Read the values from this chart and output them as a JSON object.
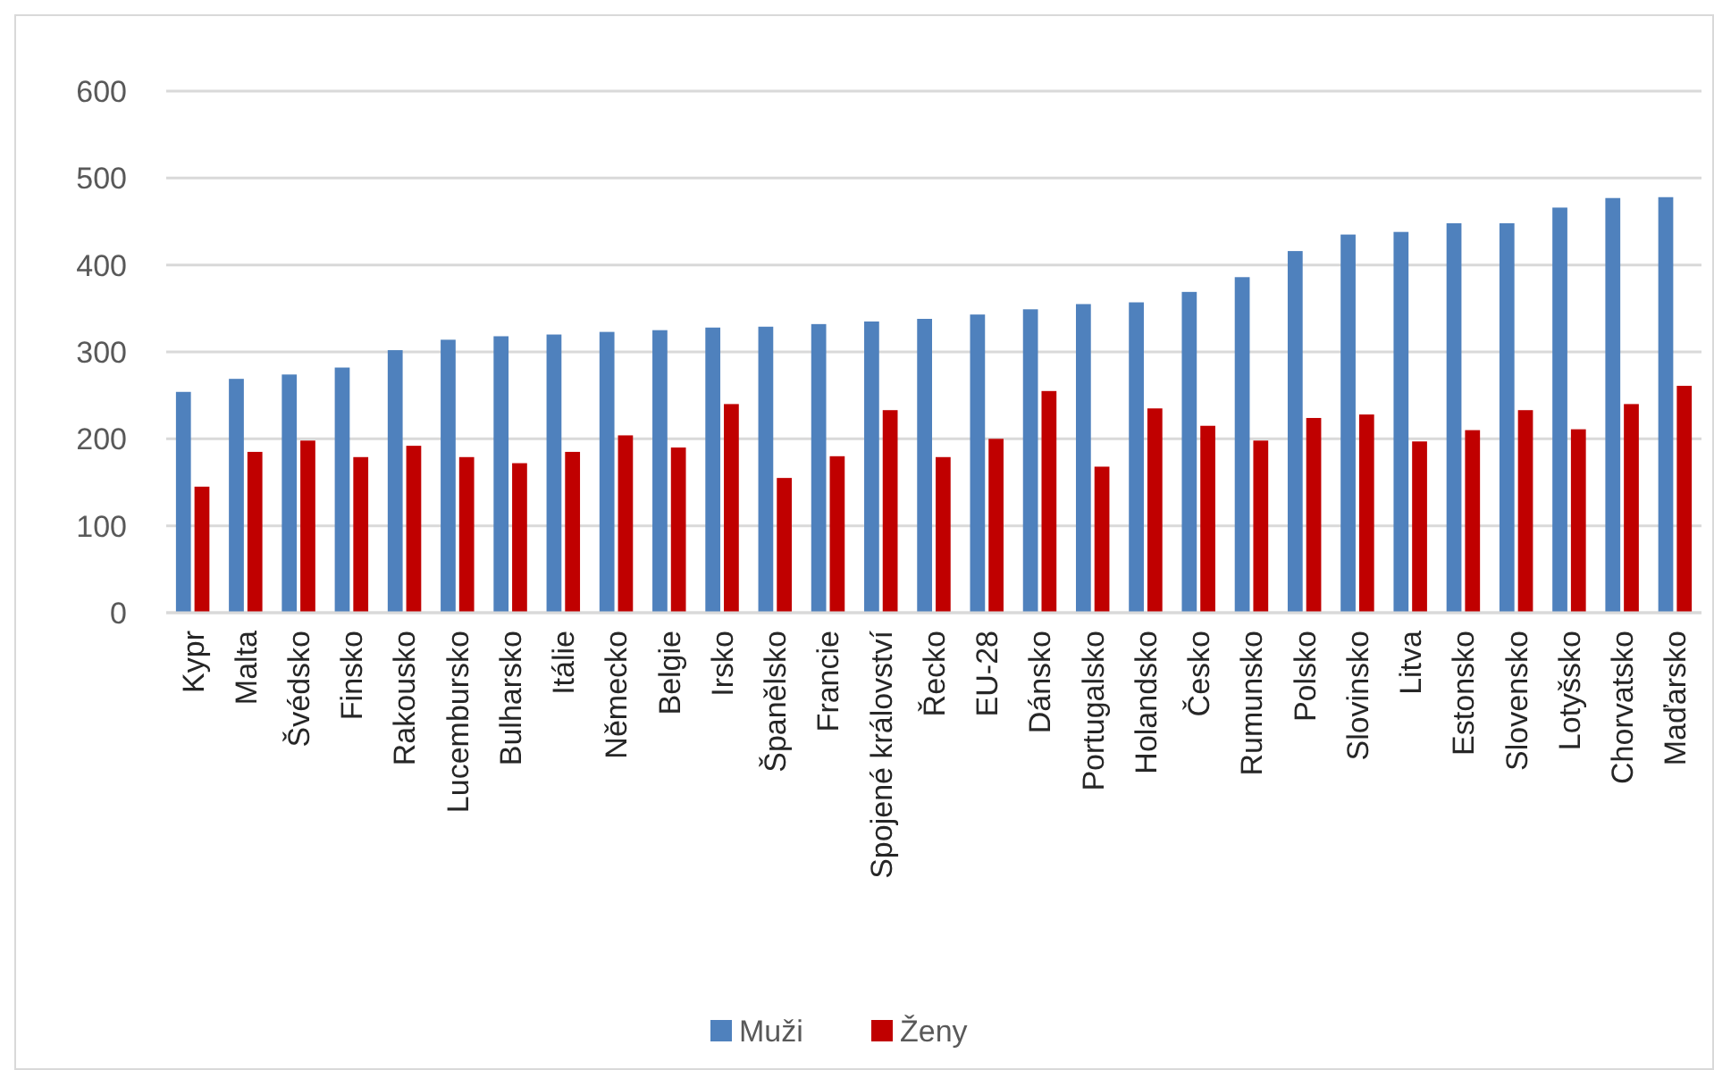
{
  "chart_data": {
    "type": "bar",
    "categories": [
      "Kypr",
      "Malta",
      "Švédsko",
      "Finsko",
      "Rakousko",
      "Lucembursko",
      "Bulharsko",
      "Itálie",
      "Německo",
      "Belgie",
      "Irsko",
      "Španělsko",
      "Francie",
      "Spojené království",
      "Řecko",
      "EU-28",
      "Dánsko",
      "Portugalsko",
      "Holandsko",
      "Česko",
      "Rumunsko",
      "Polsko",
      "Slovinsko",
      "Litva",
      "Estonsko",
      "Slovensko",
      "Lotyšsko",
      "Chorvatsko",
      "Maďarsko"
    ],
    "series": [
      {
        "name": "Muži",
        "color": "#4f81bd",
        "values": [
          254,
          269,
          274,
          282,
          302,
          314,
          318,
          320,
          323,
          325,
          328,
          329,
          332,
          335,
          338,
          343,
          349,
          355,
          357,
          369,
          386,
          416,
          435,
          438,
          448,
          448,
          466,
          477,
          478
        ]
      },
      {
        "name": "Ženy",
        "color": "#c00000",
        "values": [
          145,
          185,
          198,
          179,
          192,
          179,
          172,
          185,
          204,
          190,
          240,
          155,
          180,
          233,
          179,
          200,
          255,
          168,
          235,
          215,
          198,
          224,
          228,
          197,
          210,
          233,
          211,
          240,
          261
        ]
      }
    ],
    "ylim": [
      0,
      600
    ],
    "yticks": [
      0,
      100,
      200,
      300,
      400,
      500,
      600
    ],
    "grid": "y",
    "legend": "bottom"
  }
}
